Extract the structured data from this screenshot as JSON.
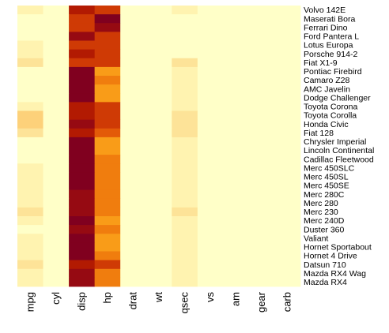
{
  "chart_data": {
    "type": "heatmap",
    "title": "",
    "xlabel": "",
    "ylabel": "",
    "x": [
      "mpg",
      "cyl",
      "disp",
      "hp",
      "drat",
      "wt",
      "qsec",
      "vs",
      "am",
      "gear",
      "carb"
    ],
    "y": [
      "Volvo 142E",
      "Maserati Bora",
      "Ferrari Dino",
      "Ford Pantera L",
      "Lotus Europa",
      "Porsche 914-2",
      "Fiat X1-9",
      "Pontiac Firebird",
      "Camaro Z28",
      "AMC Javelin",
      "Dodge Challenger",
      "Toyota Corona",
      "Toyota Corolla",
      "Honda Civic",
      "Fiat 128",
      "Chrysler Imperial",
      "Lincoln Continental",
      "Cadillac Fleetwood",
      "Merc 450SLC",
      "Merc 450SL",
      "Merc 450SE",
      "Merc 280C",
      "Merc 280",
      "Merc 230",
      "Merc 240D",
      "Duster 360",
      "Valiant",
      "Hornet Sportabout",
      "Hornet 4 Drive",
      "Datsun 710",
      "Mazda RX4 Wag",
      "Mazda RX4"
    ],
    "colors": [
      "#FFFFC8",
      "#FFF3B0",
      "#FDE398",
      "#FDD17A",
      "#FBB645",
      "#F99C18",
      "#F07D0E",
      "#E35A08",
      "#CF3A05",
      "#B21A02",
      "#960A12",
      "#80001F"
    ],
    "values": [
      [
        1,
        0,
        9,
        8,
        0,
        0,
        1,
        0,
        0,
        0,
        0
      ],
      [
        0,
        0,
        8,
        11,
        0,
        0,
        0,
        0,
        0,
        0,
        0
      ],
      [
        0,
        0,
        8,
        10,
        0,
        0,
        0,
        0,
        0,
        0,
        0
      ],
      [
        0,
        0,
        10,
        8,
        0,
        0,
        0,
        0,
        0,
        0,
        0
      ],
      [
        1,
        0,
        8,
        8,
        0,
        0,
        0,
        0,
        0,
        0,
        0
      ],
      [
        1,
        0,
        9,
        8,
        0,
        0,
        0,
        0,
        0,
        0,
        0
      ],
      [
        2,
        0,
        8,
        8,
        0,
        0,
        2,
        0,
        0,
        0,
        0
      ],
      [
        0,
        0,
        11,
        5,
        0,
        0,
        1,
        0,
        0,
        0,
        0
      ],
      [
        0,
        0,
        11,
        6,
        0,
        0,
        1,
        0,
        0,
        0,
        0
      ],
      [
        0,
        0,
        11,
        5,
        0,
        0,
        1,
        0,
        0,
        0,
        0
      ],
      [
        0,
        0,
        11,
        5,
        0,
        0,
        1,
        0,
        0,
        0,
        0
      ],
      [
        1,
        0,
        9,
        8,
        0,
        0,
        1,
        0,
        0,
        0,
        0
      ],
      [
        3,
        0,
        9,
        8,
        0,
        0,
        2,
        0,
        0,
        0,
        0
      ],
      [
        3,
        0,
        10,
        8,
        0,
        0,
        2,
        0,
        0,
        0,
        0
      ],
      [
        2,
        0,
        9,
        7,
        0,
        0,
        2,
        0,
        0,
        0,
        0
      ],
      [
        0,
        0,
        11,
        5,
        0,
        0,
        1,
        0,
        0,
        0,
        0
      ],
      [
        0,
        0,
        11,
        5,
        0,
        0,
        1,
        0,
        0,
        0,
        0
      ],
      [
        0,
        0,
        11,
        6,
        0,
        0,
        1,
        0,
        0,
        0,
        0
      ],
      [
        1,
        0,
        11,
        6,
        0,
        0,
        1,
        0,
        0,
        0,
        0
      ],
      [
        1,
        0,
        11,
        6,
        0,
        0,
        1,
        0,
        0,
        0,
        0
      ],
      [
        1,
        0,
        11,
        6,
        0,
        0,
        1,
        0,
        0,
        0,
        0
      ],
      [
        1,
        0,
        10,
        6,
        0,
        0,
        1,
        0,
        0,
        0,
        0
      ],
      [
        1,
        0,
        10,
        6,
        0,
        0,
        1,
        0,
        0,
        0,
        0
      ],
      [
        2,
        0,
        10,
        6,
        0,
        0,
        2,
        0,
        0,
        0,
        0
      ],
      [
        1,
        0,
        11,
        5,
        0,
        0,
        1,
        0,
        0,
        0,
        0
      ],
      [
        0,
        0,
        10,
        6,
        0,
        0,
        1,
        0,
        0,
        0,
        0
      ],
      [
        1,
        0,
        11,
        5,
        0,
        0,
        1,
        0,
        0,
        0,
        0
      ],
      [
        1,
        0,
        11,
        5,
        0,
        0,
        1,
        0,
        0,
        0,
        0
      ],
      [
        1,
        0,
        11,
        6,
        0,
        0,
        1,
        0,
        0,
        0,
        0
      ],
      [
        2,
        0,
        9,
        8,
        0,
        0,
        1,
        0,
        0,
        0,
        0
      ],
      [
        1,
        0,
        10,
        6,
        0,
        0,
        1,
        0,
        0,
        0,
        0
      ],
      [
        1,
        0,
        10,
        6,
        0,
        0,
        1,
        0,
        0,
        0,
        0
      ]
    ],
    "grid": false,
    "legend": "none"
  }
}
